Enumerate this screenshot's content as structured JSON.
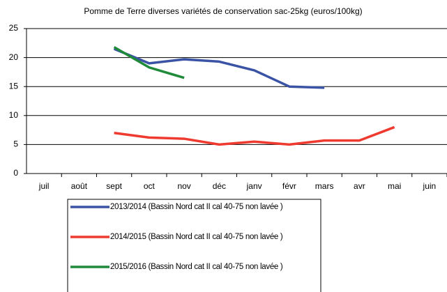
{
  "chart_data": {
    "type": "line",
    "title": "Pomme de Terre diverses variétés de conservation  sac-25kg (euros/100kg)",
    "categories": [
      "juil",
      "août",
      "sept",
      "oct",
      "nov",
      "déc",
      "janv",
      "févr",
      "mars",
      "avr",
      "mai",
      "juin"
    ],
    "series": [
      {
        "name": "2013/2014 (Bassin Nord cat II cal 40-75 non lavée )",
        "color": "#3a53a4",
        "values": [
          null,
          null,
          21.5,
          19,
          19.7,
          19.3,
          17.8,
          15,
          14.8,
          null,
          null,
          null
        ]
      },
      {
        "name": "2014/2015 (Bassin Nord cat II cal 40-75 non lavée )",
        "color": "#ee3a2f",
        "values": [
          null,
          null,
          7,
          6.2,
          6,
          5,
          5.5,
          5,
          5.7,
          5.7,
          8,
          null
        ]
      },
      {
        "name": "2015/2016 (Bassin Nord cat II cal 40-75 non lavée )",
        "color": "#1f8a3a",
        "values": [
          null,
          null,
          21.8,
          18.3,
          16.5,
          null,
          null,
          null,
          null,
          null,
          null,
          null
        ]
      }
    ],
    "ylim": [
      0,
      25
    ],
    "yticks": [
      0,
      5,
      10,
      15,
      20,
      25
    ],
    "grid": true
  }
}
